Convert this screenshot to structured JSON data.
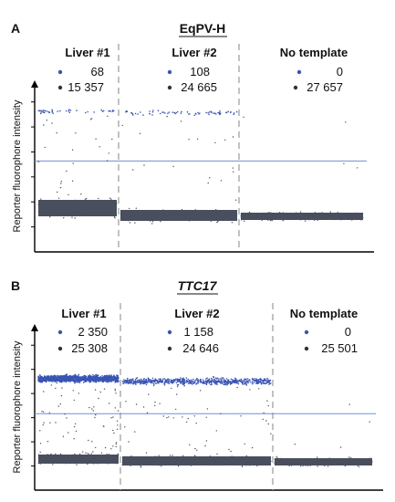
{
  "panels": [
    {
      "letter": "A",
      "title": "EqPV-H",
      "title_style": "bold",
      "ylabel": "Reporter fluorophore intensity",
      "threshold_fraction": 0.47,
      "wells": [
        {
          "label": "Liver #1",
          "positive": "68",
          "negative": "15 357"
        },
        {
          "label": "Liver #2",
          "positive": "108",
          "negative": "24 665"
        },
        {
          "label": "No template",
          "positive": "0",
          "negative": "27 657"
        }
      ]
    },
    {
      "letter": "B",
      "title": "TTC17",
      "title_style": "bold-italic-underline",
      "ylabel": "Reporter fluorophore intensity",
      "threshold_fraction": 0.54,
      "wells": [
        {
          "label": "Liver #1",
          "positive": "2 350",
          "negative": "25 308"
        },
        {
          "label": "Liver #2",
          "positive": "1 158",
          "negative": "24 646"
        },
        {
          "label": "No template",
          "positive": "0",
          "negative": "25 501"
        }
      ]
    }
  ],
  "chart_data": [
    {
      "type": "scatter",
      "title": "EqPV-H",
      "ylabel": "Reporter fluorophore intensity",
      "categories": [
        "Liver #1",
        "Liver #2",
        "No template"
      ],
      "series": [
        {
          "name": "positive droplets",
          "color": "#3a55b4",
          "values": [
            68,
            108,
            0
          ]
        },
        {
          "name": "negative droplets",
          "color": "#4a4f5e",
          "values": [
            15357,
            24665,
            27657
          ]
        }
      ]
    },
    {
      "type": "scatter",
      "title": "TTC17",
      "ylabel": "Reporter fluorophore intensity",
      "categories": [
        "Liver #1",
        "Liver #2",
        "No template"
      ],
      "series": [
        {
          "name": "positive droplets",
          "color": "#3a55b4",
          "values": [
            2350,
            1158,
            0
          ]
        },
        {
          "name": "negative droplets",
          "color": "#4a4f5e",
          "values": [
            25308,
            24646,
            25501
          ]
        }
      ]
    }
  ],
  "colors": {
    "positive": "#3a55b4",
    "negative": "#4a4f5e",
    "threshold": "#6f8fd8",
    "divider": "#9a9a9a"
  }
}
